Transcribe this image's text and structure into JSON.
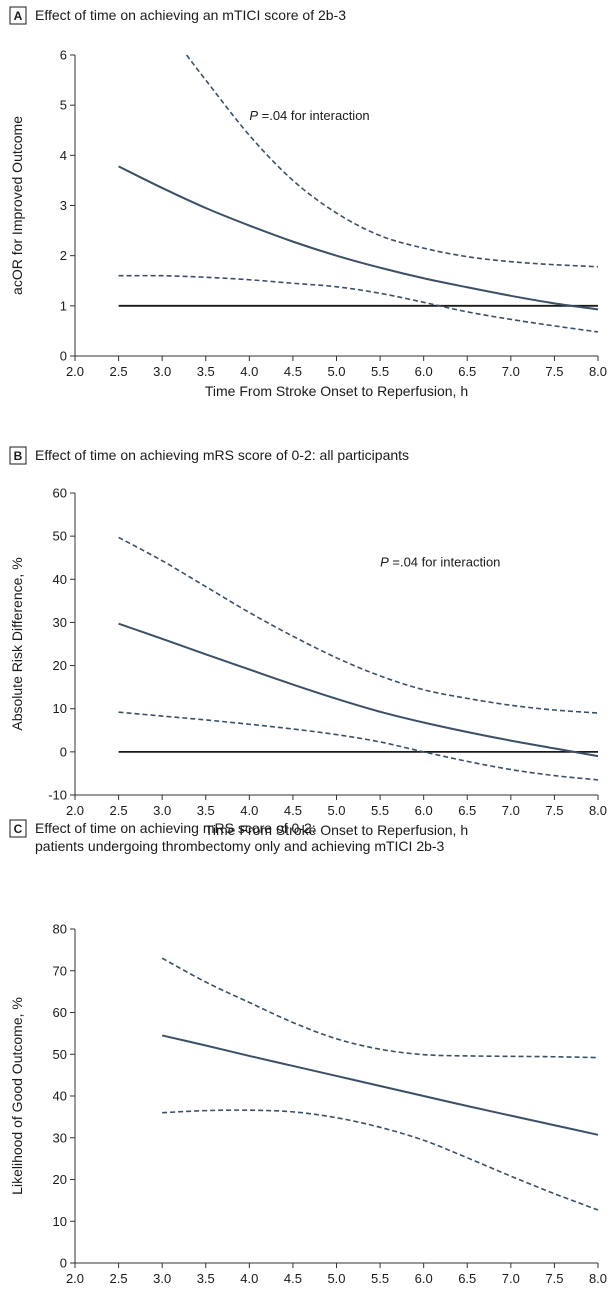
{
  "chart_data": [
    {
      "panel": "A",
      "type": "line",
      "title": "Effect of time on achieving an mTICI score of 2b-3",
      "xlabel": "Time From Stroke Onset to Reperfusion, h",
      "ylabel": "acOR for Improved Outcome",
      "xlim": [
        2.0,
        8.0
      ],
      "ylim": [
        0,
        6
      ],
      "xticks": [
        "2.0",
        "2.5",
        "3.0",
        "3.5",
        "4.0",
        "4.5",
        "5.0",
        "5.5",
        "6.0",
        "6.5",
        "7.0",
        "7.5",
        "8.0"
      ],
      "yticks": [
        "0",
        "1",
        "2",
        "3",
        "4",
        "5",
        "6"
      ],
      "grid": false,
      "annotation": {
        "p": "P",
        "rest": " =.04 for interaction",
        "x": 4.0,
        "y": 4.7
      },
      "reference_line": {
        "y": 1,
        "x_start": 2.5,
        "x_end": 8.0
      },
      "series": [
        {
          "role": "estimate",
          "style": "solid",
          "x": [
            2.5,
            3.0,
            3.5,
            4.0,
            4.5,
            5.0,
            5.5,
            6.0,
            6.5,
            7.0,
            7.5,
            8.0
          ],
          "y": [
            3.78,
            3.35,
            2.95,
            2.6,
            2.28,
            2.0,
            1.76,
            1.55,
            1.37,
            1.2,
            1.05,
            0.93
          ]
        },
        {
          "role": "upper CI",
          "style": "dashed",
          "x": [
            3.28,
            3.5,
            4.0,
            4.5,
            5.0,
            5.5,
            6.0,
            6.5,
            7.0,
            7.5,
            8.0
          ],
          "y": [
            6.0,
            5.5,
            4.4,
            3.5,
            2.85,
            2.4,
            2.15,
            1.98,
            1.88,
            1.82,
            1.78
          ]
        },
        {
          "role": "lower CI",
          "style": "dashed",
          "x": [
            2.5,
            3.0,
            3.5,
            4.0,
            4.5,
            5.0,
            5.5,
            6.0,
            6.5,
            7.0,
            7.5,
            8.0
          ],
          "y": [
            1.6,
            1.6,
            1.57,
            1.52,
            1.45,
            1.38,
            1.25,
            1.07,
            0.88,
            0.73,
            0.6,
            0.48
          ]
        }
      ]
    },
    {
      "panel": "B",
      "type": "line",
      "title": "Effect of time on achieving mRS score of 0-2: all participants",
      "xlabel": "Time From Stroke Onset to Reperfusion, h",
      "ylabel": "Absolute Risk Difference, %",
      "xlim": [
        2.0,
        8.0
      ],
      "ylim": [
        -10,
        60
      ],
      "xticks": [
        "2.0",
        "2.5",
        "3.0",
        "3.5",
        "4.0",
        "4.5",
        "5.0",
        "5.5",
        "6.0",
        "6.5",
        "7.0",
        "7.5",
        "8.0"
      ],
      "yticks": [
        "-10",
        "0",
        "10",
        "20",
        "30",
        "40",
        "50",
        "60"
      ],
      "grid": false,
      "annotation": {
        "p": "P",
        "rest": " =.04 for interaction",
        "x": 5.5,
        "y": 43
      },
      "reference_line": {
        "y": 0,
        "x_start": 2.5,
        "x_end": 8.0
      },
      "series": [
        {
          "role": "estimate",
          "style": "solid",
          "x": [
            2.5,
            3.0,
            3.5,
            4.0,
            4.5,
            5.0,
            5.5,
            6.0,
            6.5,
            7.0,
            7.5,
            8.0
          ],
          "y": [
            29.7,
            26.2,
            22.6,
            19.1,
            15.6,
            12.3,
            9.3,
            6.8,
            4.6,
            2.6,
            0.8,
            -1.0
          ]
        },
        {
          "role": "upper CI",
          "style": "dashed",
          "x": [
            2.5,
            3.0,
            3.5,
            4.0,
            4.5,
            5.0,
            5.5,
            6.0,
            6.5,
            7.0,
            7.5,
            8.0
          ],
          "y": [
            49.7,
            44.3,
            38.3,
            32.3,
            26.8,
            21.8,
            17.6,
            14.4,
            12.4,
            10.8,
            9.7,
            9.0
          ]
        },
        {
          "role": "lower CI",
          "style": "dashed",
          "x": [
            2.5,
            3.0,
            3.5,
            4.0,
            4.5,
            5.0,
            5.5,
            6.0,
            6.5,
            7.0,
            7.5,
            8.0
          ],
          "y": [
            9.2,
            8.3,
            7.4,
            6.4,
            5.3,
            4.0,
            2.3,
            0.0,
            -2.2,
            -4.1,
            -5.5,
            -6.5
          ]
        }
      ]
    },
    {
      "panel": "C",
      "type": "line",
      "title": "Effect of time on achieving mRS score of 0-2:",
      "title_line2": "patients undergoing thrombectomy only and achieving mTICI 2b-3",
      "xlabel": "Time From Stroke Onset to Reperfusion, h",
      "ylabel": "Likelihood of Good Outcome, %",
      "xlim": [
        2.0,
        8.0
      ],
      "ylim": [
        0,
        80
      ],
      "xticks": [
        "2.0",
        "2.5",
        "3.0",
        "3.5",
        "4.0",
        "4.5",
        "5.0",
        "5.5",
        "6.0",
        "6.5",
        "7.0",
        "7.5",
        "8.0"
      ],
      "yticks": [
        "0",
        "10",
        "20",
        "30",
        "40",
        "50",
        "60",
        "70",
        "80"
      ],
      "grid": false,
      "series": [
        {
          "role": "estimate",
          "style": "solid",
          "x": [
            3.0,
            3.5,
            4.0,
            4.5,
            5.0,
            5.5,
            6.0,
            6.5,
            7.0,
            7.5,
            8.0
          ],
          "y": [
            54.5,
            52.1,
            49.6,
            47.2,
            44.8,
            42.4,
            40.0,
            37.6,
            35.3,
            33.0,
            30.7
          ]
        },
        {
          "role": "upper CI",
          "style": "dashed",
          "x": [
            3.0,
            3.5,
            4.0,
            4.5,
            5.0,
            5.5,
            6.0,
            6.5,
            7.0,
            7.5,
            8.0
          ],
          "y": [
            73.0,
            67.3,
            62.4,
            57.6,
            53.7,
            51.2,
            49.9,
            49.6,
            49.5,
            49.4,
            49.2
          ]
        },
        {
          "role": "lower CI",
          "style": "dashed",
          "x": [
            3.0,
            3.5,
            4.0,
            4.5,
            5.0,
            5.5,
            6.0,
            6.5,
            7.0,
            7.5,
            8.0
          ],
          "y": [
            36.0,
            36.5,
            36.6,
            36.2,
            34.8,
            32.5,
            29.4,
            25.2,
            20.8,
            16.6,
            12.7
          ]
        }
      ]
    }
  ],
  "style": {
    "line_color": "#3a5068",
    "reference_color": "#1a1a1a",
    "axis_color": "#333333",
    "badge_border": "#1a1a1a"
  }
}
